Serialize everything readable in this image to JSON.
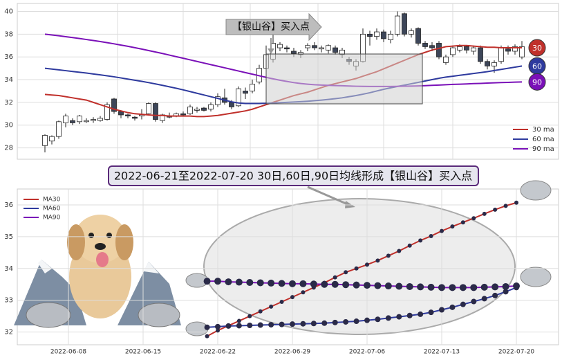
{
  "banner": "2022-06-21至2022-07-20 30日,60日,90日均线形成【银山谷】买入点",
  "chart_data": [
    {
      "type": "candlestick",
      "annotation": "【银山谷】买入点",
      "end_labels": [
        "30",
        "60",
        "90"
      ],
      "categories": [
        null,
        null,
        null,
        null,
        null,
        null,
        null,
        null,
        null,
        null,
        null,
        null,
        null,
        null,
        null,
        null,
        null,
        null,
        null,
        null,
        null,
        null,
        null,
        null,
        null,
        null,
        null,
        null,
        null,
        null,
        null,
        null,
        null,
        null,
        null,
        null,
        null,
        null,
        null,
        null,
        null,
        null,
        null,
        null,
        null,
        null,
        null,
        null,
        null,
        null,
        null,
        null,
        null,
        null,
        null,
        null,
        null,
        null,
        null,
        null,
        null,
        null,
        null,
        null,
        null,
        null,
        null,
        null,
        null,
        null
      ],
      "open": [
        28.2,
        28.6,
        29.0,
        30.2,
        30.4,
        30.3,
        30.3,
        30.4,
        30.4,
        30.5,
        32.3,
        31.2,
        30.9,
        30.7,
        30.8,
        31.0,
        31.9,
        30.4,
        30.8,
        30.8,
        31.0,
        31.0,
        31.3,
        31.5,
        31.4,
        31.8,
        32.4,
        32.0,
        31.7,
        33.0,
        33.0,
        33.8,
        35.0,
        35.8,
        36.8,
        36.8,
        36.5,
        36.2,
        36.8,
        37.0,
        36.7,
        36.6,
        36.8,
        36.2,
        35.8,
        35.2,
        35.6,
        38.0,
        37.8,
        38.2,
        37.5,
        38.0,
        39.8,
        38.0,
        38.5,
        37.2,
        37.0,
        37.2,
        35.5,
        36.2,
        36.6,
        36.9,
        36.5,
        36.8,
        35.6,
        35.2,
        35.6,
        36.7,
        36.5,
        36.0
      ],
      "close": [
        29.1,
        29.0,
        30.3,
        30.8,
        30.2,
        30.8,
        30.4,
        30.5,
        30.6,
        31.8,
        31.2,
        30.9,
        30.8,
        30.6,
        30.9,
        31.9,
        30.5,
        30.9,
        30.7,
        31.0,
        30.9,
        31.6,
        31.4,
        31.3,
        31.8,
        32.5,
        32.0,
        31.6,
        33.2,
        32.8,
        33.6,
        35.0,
        36.2,
        37.2,
        37.1,
        36.7,
        36.3,
        36.4,
        37.0,
        36.8,
        36.8,
        37.0,
        36.4,
        36.6,
        35.6,
        35.6,
        38.0,
        37.8,
        38.2,
        37.6,
        38.0,
        39.6,
        38.0,
        38.3,
        37.2,
        36.9,
        36.8,
        36.0,
        36.0,
        36.8,
        36.9,
        36.6,
        36.8,
        35.6,
        35.2,
        35.5,
        36.8,
        36.5,
        36.9,
        36.9
      ],
      "low": [
        27.6,
        28.3,
        28.8,
        29.8,
        30.0,
        30.1,
        30.2,
        30.2,
        30.3,
        30.4,
        31.0,
        30.6,
        30.6,
        30.4,
        30.5,
        30.9,
        30.3,
        30.2,
        30.6,
        30.7,
        30.8,
        30.9,
        31.1,
        31.2,
        31.2,
        31.6,
        31.8,
        31.4,
        31.6,
        32.3,
        32.8,
        33.6,
        34.8,
        35.5,
        36.5,
        36.4,
        36.0,
        35.9,
        36.5,
        36.6,
        36.4,
        36.3,
        36.2,
        35.9,
        35.3,
        34.8,
        35.5,
        37.0,
        37.5,
        37.3,
        37.2,
        37.8,
        37.8,
        37.7,
        37.0,
        36.7,
        36.5,
        35.8,
        35.3,
        36.0,
        36.4,
        36.3,
        36.2,
        35.4,
        34.9,
        34.6,
        35.4,
        36.2,
        36.2,
        35.8
      ],
      "high": [
        29.2,
        29.1,
        30.4,
        31.0,
        30.6,
        30.9,
        30.6,
        30.7,
        30.8,
        32.0,
        32.4,
        31.3,
        31.0,
        30.8,
        31.4,
        32.0,
        32.0,
        31.0,
        31.1,
        31.1,
        31.2,
        31.8,
        31.6,
        31.6,
        32.0,
        32.8,
        33.2,
        32.2,
        33.4,
        33.3,
        34.0,
        35.3,
        37.0,
        38.0,
        37.3,
        37.0,
        36.8,
        36.6,
        37.2,
        37.3,
        37.0,
        37.1,
        37.0,
        36.8,
        36.0,
        35.8,
        38.5,
        38.3,
        38.5,
        38.4,
        38.3,
        40.0,
        39.9,
        38.5,
        38.6,
        37.4,
        37.3,
        37.4,
        36.2,
        37.0,
        37.1,
        37.0,
        37.0,
        37.0,
        35.8,
        35.7,
        37.0,
        37.0,
        37.1,
        37.4
      ],
      "up_color": "#ffffff",
      "down_color": "#3d4659",
      "series": [
        {
          "name": "30 ma",
          "color": "#c0302b",
          "values": [
            32.7,
            32.65,
            32.6,
            32.5,
            32.4,
            32.3,
            32.2,
            32.0,
            31.8,
            31.6,
            31.4,
            31.25,
            31.1,
            31.0,
            30.95,
            30.9,
            30.85,
            30.85,
            30.8,
            30.8,
            30.8,
            30.8,
            30.75,
            30.75,
            30.8,
            30.85,
            30.95,
            31.05,
            31.15,
            31.25,
            31.4,
            31.6,
            31.8,
            32.0,
            32.2,
            32.4,
            32.6,
            32.75,
            32.9,
            33.1,
            33.3,
            33.5,
            33.65,
            33.8,
            33.95,
            34.1,
            34.3,
            34.5,
            34.7,
            34.95,
            35.2,
            35.45,
            35.7,
            35.95,
            36.2,
            36.4,
            36.6,
            36.75,
            36.9,
            36.95,
            37.0,
            37.0,
            36.95,
            36.9,
            36.85,
            36.85,
            36.8,
            36.8,
            36.8,
            36.8
          ]
        },
        {
          "name": "60 ma",
          "color": "#2e3a9e",
          "values": [
            35.0,
            34.93,
            34.86,
            34.79,
            34.72,
            34.65,
            34.58,
            34.5,
            34.42,
            34.34,
            34.25,
            34.15,
            34.05,
            33.95,
            33.85,
            33.74,
            33.62,
            33.5,
            33.37,
            33.24,
            33.1,
            32.95,
            32.8,
            32.65,
            32.5,
            32.35,
            32.2,
            32.05,
            31.95,
            31.9,
            31.9,
            31.9,
            31.92,
            31.95,
            31.98,
            32.0,
            32.03,
            32.06,
            32.1,
            32.15,
            32.2,
            32.26,
            32.33,
            32.4,
            32.5,
            32.6,
            32.72,
            32.85,
            33.0,
            33.15,
            33.28,
            33.4,
            33.52,
            33.64,
            33.76,
            33.88,
            34.0,
            34.12,
            34.22,
            34.3,
            34.38,
            34.46,
            34.54,
            34.62,
            34.7,
            34.8,
            34.9,
            35.0,
            35.1,
            35.2
          ]
        },
        {
          "name": "90 ma",
          "color": "#7a10b8",
          "values": [
            38.0,
            37.93,
            37.86,
            37.78,
            37.7,
            37.62,
            37.53,
            37.44,
            37.35,
            37.25,
            37.15,
            37.04,
            36.93,
            36.81,
            36.69,
            36.56,
            36.43,
            36.3,
            36.16,
            36.02,
            35.88,
            35.74,
            35.6,
            35.46,
            35.32,
            35.18,
            35.04,
            34.9,
            34.76,
            34.62,
            34.48,
            34.34,
            34.2,
            34.07,
            33.95,
            33.84,
            33.74,
            33.66,
            33.6,
            33.55,
            33.52,
            33.5,
            33.48,
            33.46,
            33.44,
            33.42,
            33.41,
            33.4,
            33.4,
            33.4,
            33.4,
            33.41,
            33.42,
            33.43,
            33.45,
            33.47,
            33.5,
            33.52,
            33.55,
            33.58,
            33.6,
            33.62,
            33.65,
            33.67,
            33.7,
            33.72,
            33.74,
            33.76,
            33.78,
            33.8
          ]
        }
      ],
      "ylim": [
        27,
        40.7
      ],
      "yticks": [
        28,
        30,
        32,
        34,
        36,
        38,
        40
      ],
      "grid": true,
      "legend": "lower right"
    },
    {
      "type": "line",
      "x": [
        "2022-06-21",
        "2022-06-22",
        "2022-06-23",
        "2022-06-24",
        "2022-06-25",
        "2022-06-26",
        "2022-06-27",
        "2022-06-28",
        "2022-06-29",
        "2022-06-30",
        "2022-07-01",
        "2022-07-02",
        "2022-07-03",
        "2022-07-04",
        "2022-07-05",
        "2022-07-06",
        "2022-07-07",
        "2022-07-08",
        "2022-07-09",
        "2022-07-10",
        "2022-07-11",
        "2022-07-12",
        "2022-07-13",
        "2022-07-14",
        "2022-07-15",
        "2022-07-16",
        "2022-07-17",
        "2022-07-18",
        "2022-07-19",
        "2022-07-20"
      ],
      "series": [
        {
          "name": "MA30",
          "color": "#c0302b",
          "values": [
            31.87,
            32.05,
            32.2,
            32.35,
            32.5,
            32.65,
            32.8,
            32.95,
            33.1,
            33.25,
            33.4,
            33.55,
            33.72,
            33.88,
            34.0,
            34.12,
            34.25,
            34.4,
            34.55,
            34.72,
            34.88,
            35.02,
            35.18,
            35.32,
            35.45,
            35.58,
            35.72,
            35.85,
            35.97,
            36.07
          ]
        },
        {
          "name": "MA60",
          "color": "#2e3a9e",
          "values": [
            32.15,
            32.17,
            32.19,
            32.2,
            32.21,
            32.22,
            32.23,
            32.24,
            32.25,
            32.26,
            32.27,
            32.28,
            32.3,
            32.32,
            32.34,
            32.37,
            32.4,
            32.44,
            32.48,
            32.52,
            32.56,
            32.62,
            32.7,
            32.78,
            32.87,
            32.96,
            33.05,
            33.15,
            33.27,
            33.4
          ]
        },
        {
          "name": "MA90",
          "color": "#7a10b8",
          "values": [
            33.6,
            33.6,
            33.58,
            33.57,
            33.56,
            33.55,
            33.54,
            33.53,
            33.52,
            33.52,
            33.51,
            33.5,
            33.5,
            33.49,
            33.48,
            33.47,
            33.46,
            33.45,
            33.44,
            33.43,
            33.42,
            33.41,
            33.4,
            33.4,
            33.4,
            33.4,
            33.41,
            33.42,
            33.43,
            33.45
          ]
        }
      ],
      "marker_color": "#2a2a48",
      "xticks": [
        "2022-06-08",
        "2022-06-15",
        "2022-06-22",
        "2022-06-29",
        "2022-07-06",
        "2022-07-13",
        "2022-07-20"
      ],
      "ylim": [
        31.6,
        36.5
      ],
      "yticks": [
        32,
        33,
        34,
        35,
        36
      ],
      "grid": true,
      "legend": "upper left"
    }
  ]
}
